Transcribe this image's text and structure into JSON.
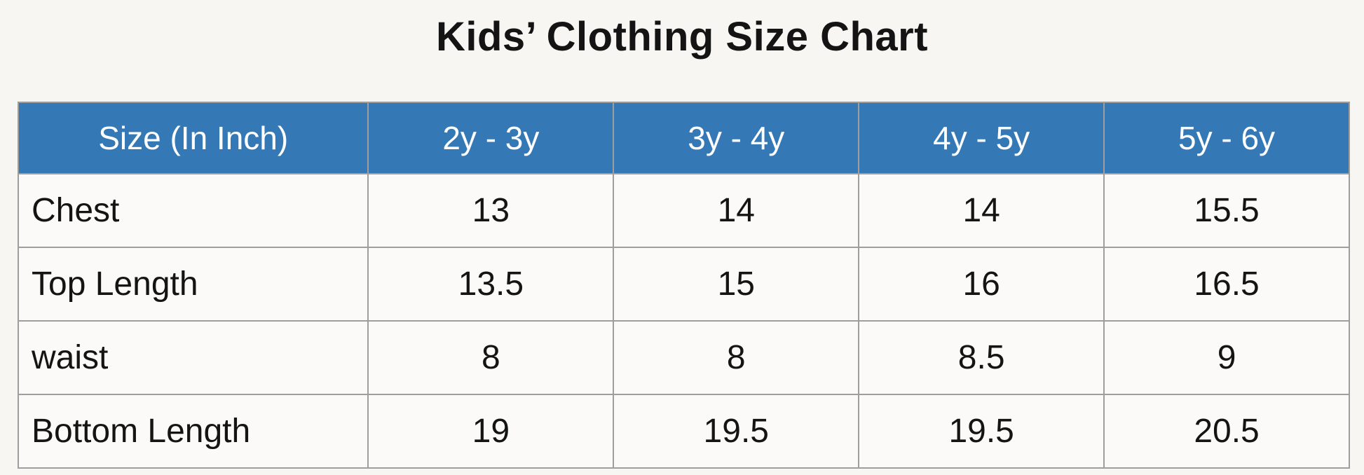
{
  "page": {
    "title": "Kids’ Clothing Size Chart"
  },
  "colors": {
    "header_bg": "#3478b5",
    "header_text": "#ffffff",
    "body_text": "#141414",
    "border": "#9e9e9e",
    "cell_bg": "#fbfaf8",
    "page_bg": "#f7f6f3"
  },
  "chart_data": {
    "type": "table",
    "title": "Kids’ Clothing Size Chart",
    "columns": [
      "Size (In Inch)",
      "2y - 3y",
      "3y - 4y",
      "4y - 5y",
      "5y - 6y"
    ],
    "rows": [
      {
        "label": "Chest",
        "values": [
          "13",
          "14",
          "14",
          "15.5"
        ]
      },
      {
        "label": "Top Length",
        "values": [
          "13.5",
          "15",
          "16",
          "16.5"
        ]
      },
      {
        "label": "waist",
        "values": [
          "8",
          "8",
          "8.5",
          "9"
        ]
      },
      {
        "label": "Bottom Length",
        "values": [
          "19",
          "19.5",
          "19.5",
          "20.5"
        ]
      }
    ]
  }
}
